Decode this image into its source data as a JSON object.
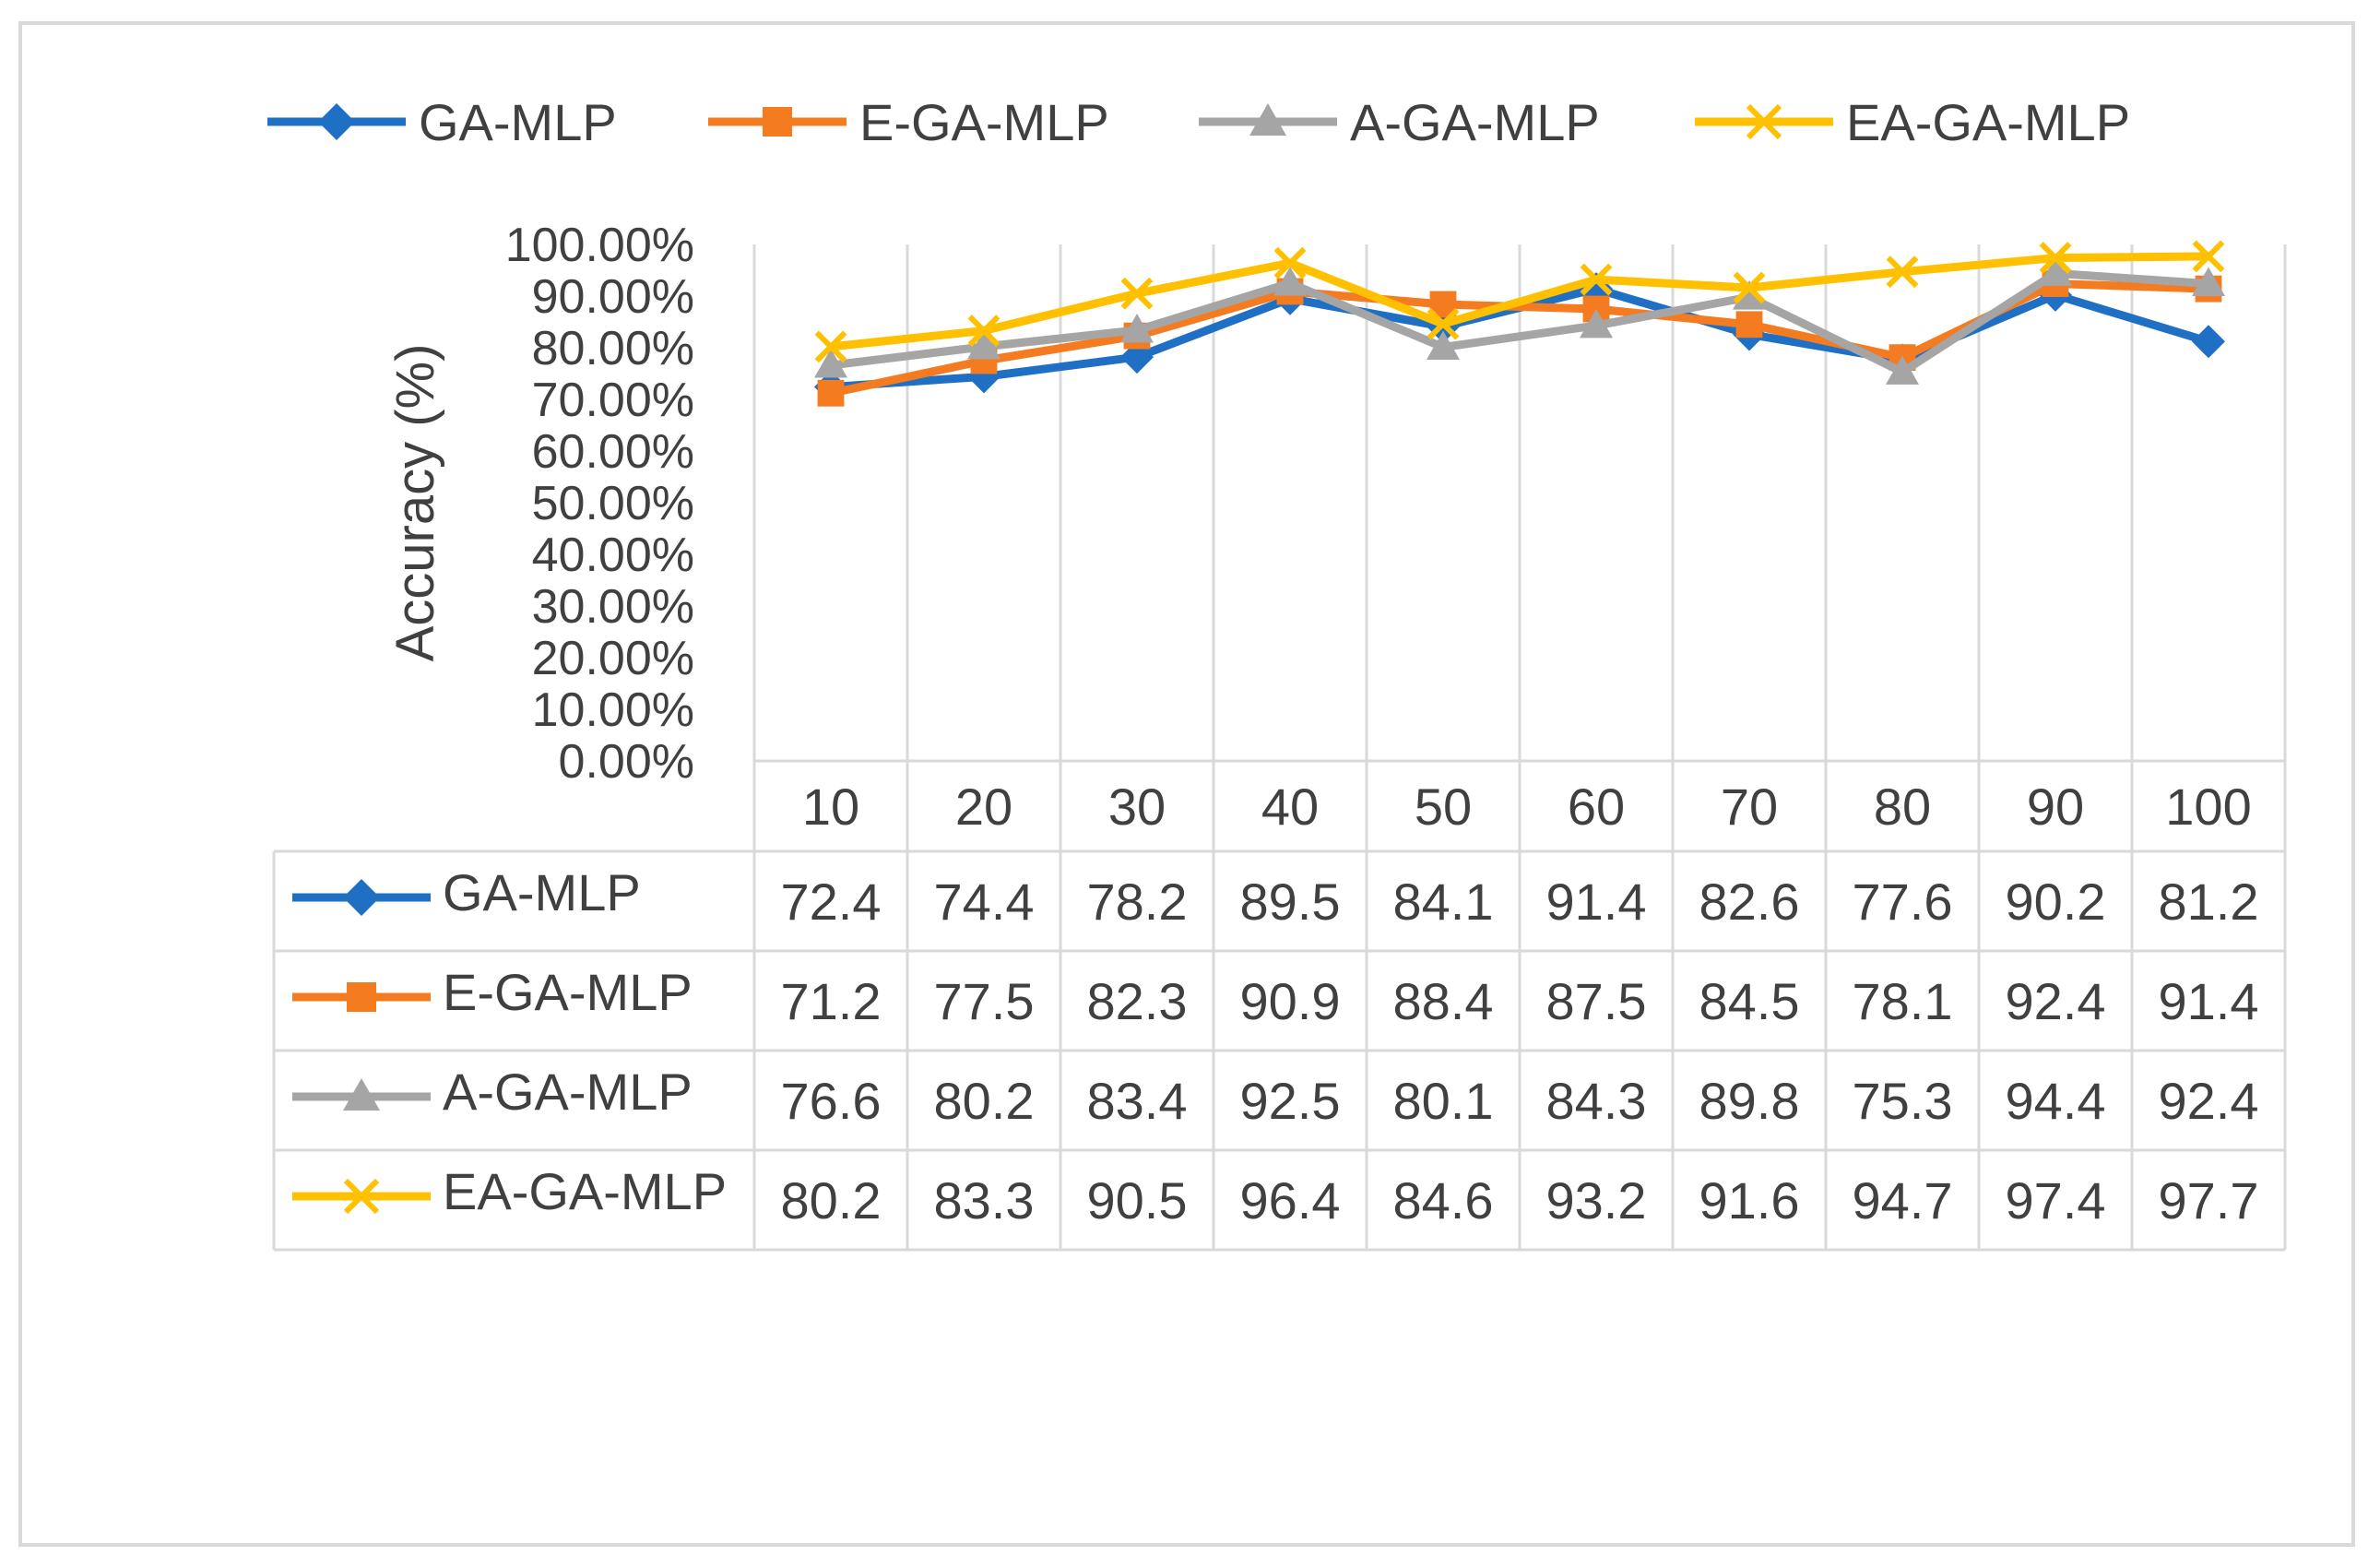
{
  "chart_data": {
    "type": "line",
    "title": "",
    "xlabel": "",
    "ylabel": "Accuracy (%)",
    "categories": [
      "10",
      "20",
      "30",
      "40",
      "50",
      "60",
      "70",
      "80",
      "90",
      "100"
    ],
    "y_ticks": [
      "0.00%",
      "10.00%",
      "20.00%",
      "30.00%",
      "40.00%",
      "50.00%",
      "60.00%",
      "70.00%",
      "80.00%",
      "90.00%",
      "100.00%"
    ],
    "ylim": [
      0,
      100
    ],
    "grid": "vertical",
    "legend_position": "top",
    "data_table": true,
    "series": [
      {
        "name": "GA-MLP",
        "color": "#1f6fc5",
        "marker": "diamond",
        "values": [
          72.4,
          74.4,
          78.2,
          89.5,
          84.1,
          91.4,
          82.6,
          77.6,
          90.2,
          81.2
        ],
        "labels": [
          "72.4",
          "74.4",
          "78.2",
          "89.5",
          "84.1",
          "91.4",
          "82.6",
          "77.6",
          "90.2",
          "81.2"
        ]
      },
      {
        "name": "E-GA-MLP",
        "color": "#f47b20",
        "marker": "square",
        "values": [
          71.2,
          77.5,
          82.3,
          90.9,
          88.4,
          87.5,
          84.5,
          78.1,
          92.4,
          91.4
        ],
        "labels": [
          "71.2",
          "77.5",
          "82.3",
          "90.9",
          "88.4",
          "87.5",
          "84.5",
          "78.1",
          "92.4",
          "91.4"
        ]
      },
      {
        "name": "A-GA-MLP",
        "color": "#a5a5a5",
        "marker": "triangle",
        "values": [
          76.6,
          80.2,
          83.4,
          92.5,
          80.1,
          84.3,
          89.8,
          75.3,
          94.4,
          92.4
        ],
        "labels": [
          "76.6",
          "80.2",
          "83.4",
          "92.5",
          "80.1",
          "84.3",
          "89.8",
          "75.3",
          "94.4",
          "92.4"
        ]
      },
      {
        "name": "EA-GA-MLP",
        "color": "#ffc000",
        "marker": "x",
        "values": [
          80.2,
          83.3,
          90.5,
          96.4,
          84.6,
          93.2,
          91.6,
          94.7,
          97.4,
          97.7
        ],
        "labels": [
          "80.2",
          "83.3",
          "90.5",
          "96.4",
          "84.6",
          "93.2",
          "91.6",
          "94.7",
          "97.4",
          "97.7"
        ]
      }
    ]
  }
}
